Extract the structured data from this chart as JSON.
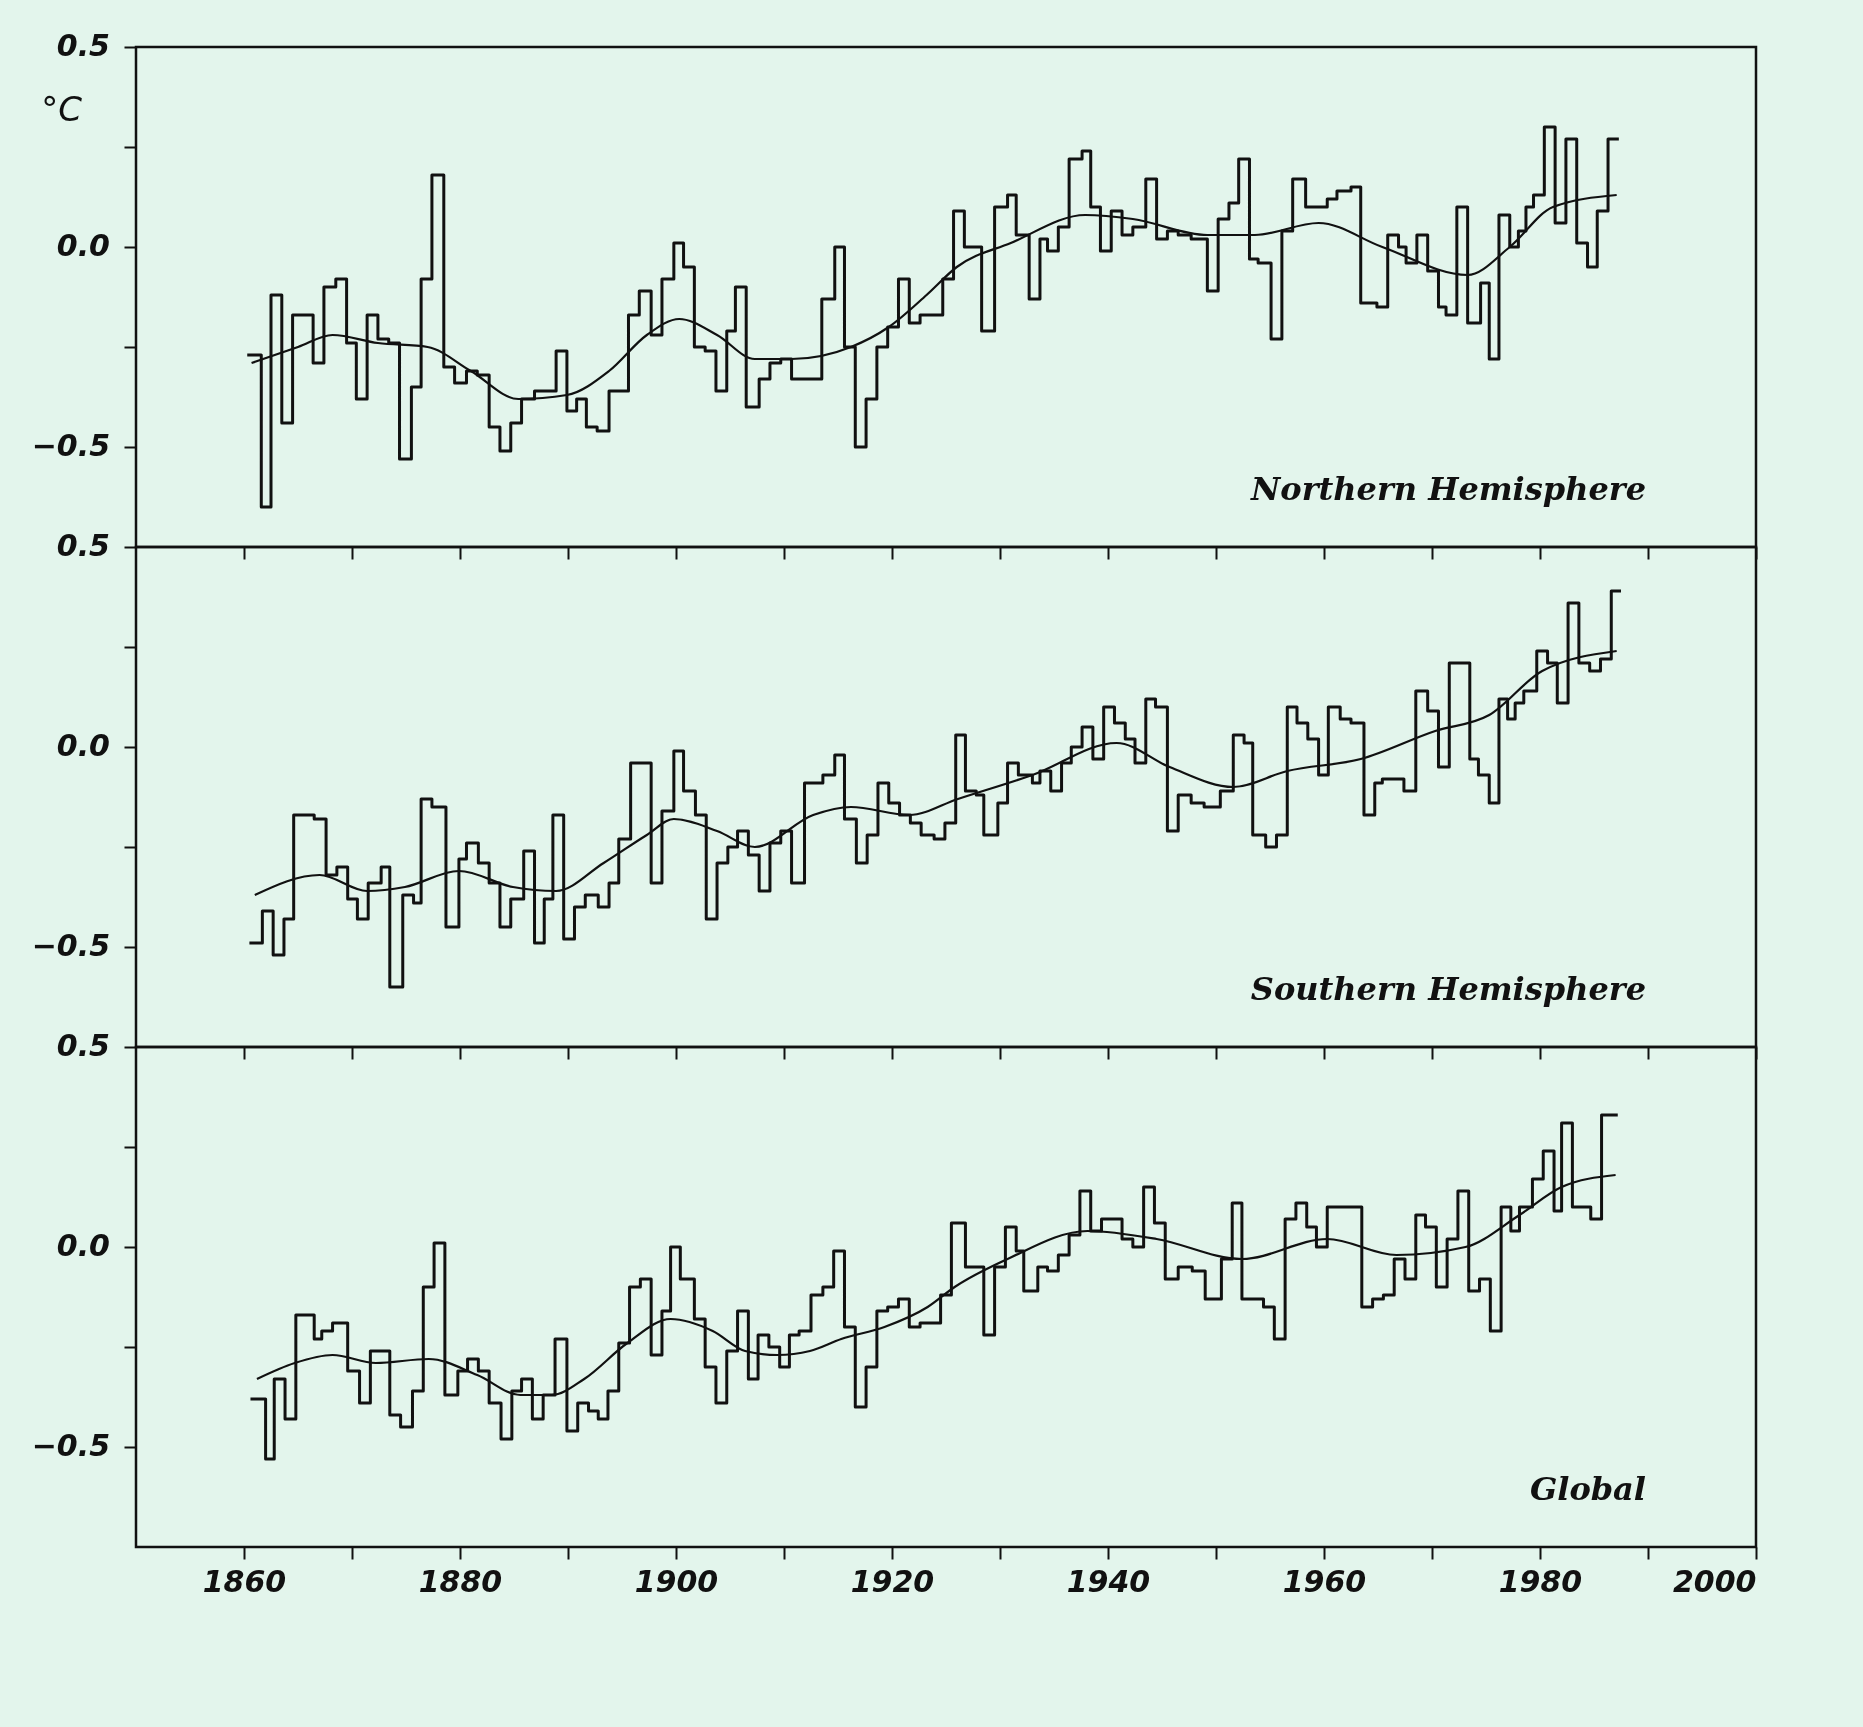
{
  "chart_data": [
    {
      "type": "step",
      "ylabel": "°C",
      "annotations": [
        "Northern Hemisphere"
      ],
      "tick_labels": "y",
      "xlim": [
        1850,
        2000
      ],
      "ylim": [
        -0.75,
        0.5
      ],
      "xticks": [
        1860,
        {
          "value": 1870,
          "label": null
        },
        1880,
        {
          "value": 1890,
          "label": null
        },
        1900,
        {
          "value": 1910,
          "label": null
        },
        1920,
        {
          "value": 1930,
          "label": null
        },
        1940,
        {
          "value": 1950,
          "label": null
        },
        1960,
        {
          "value": 1970,
          "label": null
        },
        1980,
        {
          "value": 1990,
          "label": null
        },
        2000
      ],
      "yticks": [
        {
          "value": -0.5,
          "label": "−0.5"
        },
        {
          "value": -0.25,
          "label": null
        },
        {
          "value": 0,
          "label": "0.0"
        },
        {
          "value": 0.25,
          "label": null
        },
        {
          "value": 0.5,
          "label": "0.5"
        }
      ],
      "series": [
        {
          "type": "step",
          "color": "#111111",
          "x": [
            1860.3,
            1861.6,
            1862.5,
            1863.5,
            1864.5,
            1866.4,
            1867.4,
            1868.5,
            1869.5,
            1870.4,
            1871.4,
            1872.4,
            1873.4,
            1874.4,
            1875.5,
            1876.4,
            1877.4,
            1878.5,
            1879.5,
            1880.6,
            1881.6,
            1882.7,
            1883.7,
            1884.7,
            1885.7,
            1886.9,
            1888.9,
            1889.9,
            1890.8,
            1891.7,
            1892.7,
            1893.8,
            1895.6,
            1896.6,
            1897.7,
            1898.7,
            1899.8,
            1900.7,
            1901.7,
            1902.7,
            1903.7,
            1904.7,
            1905.5,
            1906.5,
            1907.7,
            1908.7,
            1909.7,
            1910.7,
            1913.5,
            1914.7,
            1915.6,
            1916.6,
            1917.6,
            1918.6,
            1919.6,
            1920.6,
            1921.6,
            1922.6,
            1924.7,
            1925.7,
            1926.7,
            1928.3,
            1929.5,
            1930.7,
            1931.5,
            1932.7,
            1933.7,
            1934.4,
            1935.4,
            1936.4,
            1937.6,
            1938.4,
            1939.3,
            1940.3,
            1941.3,
            1942.3,
            1943.5,
            1944.5,
            1945.5,
            1946.5,
            1947.7,
            1949.2,
            1950.2,
            1951.2,
            1952.1,
            1953.1,
            1953.9,
            1955.1,
            1956.1,
            1957.1,
            1958.3,
            1960.3,
            1961.2,
            1962.5,
            1963.4,
            1964.9,
            1965.9,
            1966.9,
            1967.6,
            1968.6,
            1969.6,
            1970.6,
            1971.3,
            1972.3,
            1973.3,
            1974.5,
            1975.3,
            1976.2,
            1977.2,
            1978.0,
            1978.7,
            1979.4,
            1980.4,
            1981.4,
            1982.4,
            1983.4,
            1984.4,
            1985.3,
            1986.3,
            1987.3
          ],
          "values": [
            -0.27,
            -0.65,
            -0.12,
            -0.44,
            -0.17,
            -0.29,
            -0.1,
            -0.08,
            -0.24,
            -0.38,
            -0.17,
            -0.23,
            -0.24,
            -0.53,
            -0.35,
            -0.08,
            0.18,
            -0.3,
            -0.34,
            -0.31,
            -0.32,
            -0.45,
            -0.51,
            -0.44,
            -0.38,
            -0.36,
            -0.26,
            -0.41,
            -0.38,
            -0.45,
            -0.46,
            -0.36,
            -0.17,
            -0.11,
            -0.22,
            -0.08,
            0.01,
            -0.05,
            -0.25,
            -0.26,
            -0.36,
            -0.21,
            -0.1,
            -0.4,
            -0.33,
            -0.29,
            -0.28,
            -0.33,
            -0.13,
            0.0,
            -0.25,
            -0.5,
            -0.38,
            -0.25,
            -0.2,
            -0.08,
            -0.19,
            -0.17,
            -0.08,
            0.09,
            0.0,
            -0.21,
            0.1,
            0.13,
            0.03,
            -0.13,
            0.02,
            -0.01,
            0.05,
            0.22,
            0.24,
            0.1,
            -0.01,
            0.09,
            0.03,
            0.05,
            0.17,
            0.02,
            0.04,
            0.03,
            0.02,
            -0.11,
            0.07,
            0.11,
            0.22,
            -0.03,
            -0.04,
            -0.23,
            0.04,
            0.17,
            0.1,
            0.12,
            0.14,
            0.15,
            -0.14,
            -0.15,
            0.03,
            0.0,
            -0.04,
            0.03,
            -0.06,
            -0.15,
            -0.17,
            0.1,
            -0.19,
            -0.09,
            -0.28,
            0.08,
            0.0,
            0.04,
            0.1,
            0.13,
            0.3,
            0.06,
            0.27,
            0.01,
            -0.05,
            0.09,
            0.27,
            0.27
          ]
        },
        {
          "type": "line",
          "color": "#111111",
          "x": [
            1860.7,
            1865,
            1868.2,
            1872.4,
            1877,
            1881,
            1885.4,
            1889.9,
            1893.8,
            1897.3,
            1900.3,
            1903.8,
            1907.3,
            1910.7,
            1916.2,
            1919.7,
            1923.2,
            1926,
            1931,
            1937.9,
            1942.3,
            1949.2,
            1953.6,
            1959.5,
            1965.4,
            1973.3,
            1977.2,
            1981.2,
            1987.1
          ],
          "values": [
            -0.29,
            -0.25,
            -0.22,
            -0.24,
            -0.25,
            -0.31,
            -0.38,
            -0.37,
            -0.31,
            -0.22,
            -0.18,
            -0.22,
            -0.28,
            -0.28,
            -0.25,
            -0.2,
            -0.12,
            -0.05,
            0.01,
            0.08,
            0.07,
            0.03,
            0.03,
            0.06,
            0.0,
            -0.07,
            0.0,
            0.1,
            0.13
          ]
        }
      ]
    },
    {
      "type": "step",
      "annotations": [
        "Southern Hemisphere"
      ],
      "tick_labels": "y",
      "xlim": [
        1850,
        2000
      ],
      "ylim": [
        -0.75,
        0.5
      ],
      "xticks": [
        1860,
        {
          "value": 1870,
          "label": null
        },
        1880,
        {
          "value": 1890,
          "label": null
        },
        1900,
        {
          "value": 1910,
          "label": null
        },
        1920,
        {
          "value": 1930,
          "label": null
        },
        1940,
        {
          "value": 1950,
          "label": null
        },
        1960,
        {
          "value": 1970,
          "label": null
        },
        1980,
        {
          "value": 1990,
          "label": null
        },
        2000
      ],
      "yticks": [
        {
          "value": -0.5,
          "label": "−0.5"
        },
        {
          "value": -0.25,
          "label": null
        },
        {
          "value": 0,
          "label": "0.0"
        },
        {
          "value": 0.25,
          "label": null
        },
        {
          "value": 0.5,
          "label": "0.5"
        }
      ],
      "series": [
        {
          "type": "step",
          "color": "#111111",
          "x": [
            1860.5,
            1861.7,
            1862.7,
            1863.7,
            1864.6,
            1866.5,
            1867.6,
            1868.6,
            1869.6,
            1870.5,
            1871.5,
            1872.7,
            1873.5,
            1874.7,
            1875.7,
            1876.4,
            1877.4,
            1878.7,
            1879.9,
            1880.6,
            1881.7,
            1882.7,
            1883.7,
            1884.7,
            1885.9,
            1886.9,
            1887.8,
            1888.6,
            1889.6,
            1890.6,
            1891.6,
            1892.8,
            1893.8,
            1894.7,
            1895.8,
            1897.7,
            1898.7,
            1899.8,
            1900.7,
            1901.8,
            1902.8,
            1903.8,
            1904.8,
            1905.7,
            1906.7,
            1907.7,
            1908.7,
            1909.7,
            1910.7,
            1911.9,
            1913.6,
            1914.7,
            1915.6,
            1916.7,
            1917.7,
            1918.7,
            1919.7,
            1920.7,
            1921.7,
            1922.7,
            1923.9,
            1924.9,
            1925.9,
            1926.8,
            1927.8,
            1928.5,
            1929.8,
            1930.7,
            1931.7,
            1933.0,
            1933.7,
            1934.7,
            1935.7,
            1936.6,
            1937.6,
            1938.6,
            1939.6,
            1940.6,
            1941.6,
            1942.5,
            1943.5,
            1944.4,
            1945.5,
            1946.5,
            1947.7,
            1948.9,
            1950.4,
            1951.6,
            1952.6,
            1953.4,
            1954.6,
            1955.6,
            1956.6,
            1957.5,
            1958.5,
            1959.5,
            1960.4,
            1961.5,
            1962.5,
            1963.7,
            1964.7,
            1965.4,
            1967.4,
            1968.5,
            1969.6,
            1970.6,
            1971.6,
            1973.5,
            1974.3,
            1975.3,
            1976.2,
            1977.0,
            1977.7,
            1978.5,
            1979.7,
            1980.7,
            1981.6,
            1982.6,
            1983.6,
            1984.6,
            1985.6,
            1986.6,
            1987.5
          ],
          "values": [
            -0.49,
            -0.41,
            -0.52,
            -0.43,
            -0.17,
            -0.18,
            -0.32,
            -0.3,
            -0.38,
            -0.43,
            -0.34,
            -0.3,
            -0.6,
            -0.37,
            -0.39,
            -0.13,
            -0.15,
            -0.45,
            -0.28,
            -0.24,
            -0.29,
            -0.34,
            -0.45,
            -0.38,
            -0.26,
            -0.49,
            -0.38,
            -0.17,
            -0.48,
            -0.4,
            -0.37,
            -0.4,
            -0.34,
            -0.23,
            -0.04,
            -0.34,
            -0.16,
            -0.01,
            -0.11,
            -0.17,
            -0.43,
            -0.29,
            -0.25,
            -0.21,
            -0.27,
            -0.36,
            -0.24,
            -0.21,
            -0.34,
            -0.09,
            -0.07,
            -0.02,
            -0.18,
            -0.29,
            -0.22,
            -0.09,
            -0.14,
            -0.17,
            -0.19,
            -0.22,
            -0.23,
            -0.19,
            0.03,
            -0.11,
            -0.12,
            -0.22,
            -0.14,
            -0.04,
            -0.07,
            -0.09,
            -0.06,
            -0.11,
            -0.04,
            0.0,
            0.05,
            -0.03,
            0.1,
            0.06,
            0.02,
            -0.04,
            0.12,
            0.1,
            -0.21,
            -0.12,
            -0.14,
            -0.15,
            -0.11,
            0.03,
            0.01,
            -0.22,
            -0.25,
            -0.22,
            0.1,
            0.06,
            0.02,
            -0.07,
            0.1,
            0.07,
            0.06,
            -0.17,
            -0.09,
            -0.08,
            -0.11,
            0.14,
            0.09,
            -0.05,
            0.21,
            -0.03,
            -0.07,
            -0.14,
            0.12,
            0.07,
            0.11,
            0.14,
            0.24,
            0.21,
            0.11,
            0.36,
            0.21,
            0.19,
            0.22,
            0.39,
            0.39
          ]
        },
        {
          "type": "line",
          "color": "#111111",
          "x": [
            1861,
            1867,
            1871.4,
            1874.9,
            1879.9,
            1884.9,
            1888.9,
            1893.3,
            1897.3,
            1899.8,
            1903.8,
            1907.3,
            1912.7,
            1916.2,
            1921.6,
            1926.1,
            1933,
            1940.8,
            1945.7,
            1951.6,
            1956.6,
            1963.4,
            1970.3,
            1975.3,
            1980.2,
            1987.1
          ],
          "values": [
            -0.37,
            -0.32,
            -0.36,
            -0.35,
            -0.31,
            -0.35,
            -0.36,
            -0.29,
            -0.22,
            -0.18,
            -0.21,
            -0.25,
            -0.17,
            -0.15,
            -0.17,
            -0.13,
            -0.07,
            0.01,
            -0.05,
            -0.1,
            -0.06,
            -0.03,
            0.04,
            0.08,
            0.19,
            0.24
          ]
        }
      ]
    },
    {
      "type": "step",
      "annotations": [
        "Global"
      ],
      "xlim": [
        1850,
        2000
      ],
      "ylim": [
        -0.75,
        0.5
      ],
      "xticks": [
        1860,
        {
          "value": 1870,
          "label": null
        },
        1880,
        {
          "value": 1890,
          "label": null
        },
        1900,
        {
          "value": 1910,
          "label": null
        },
        1920,
        {
          "value": 1930,
          "label": null
        },
        1940,
        {
          "value": 1950,
          "label": null
        },
        1960,
        {
          "value": 1970,
          "label": null
        },
        1980,
        {
          "value": 1990,
          "label": null
        },
        2000
      ],
      "yticks": [
        {
          "value": -0.5,
          "label": "−0.5"
        },
        {
          "value": -0.25,
          "label": null
        },
        {
          "value": 0,
          "label": "0.0"
        },
        {
          "value": 0.25,
          "label": null
        },
        {
          "value": 0.5,
          "label": "0.5"
        }
      ],
      "series": [
        {
          "type": "step",
          "color": "#111111",
          "x": [
            1860.6,
            1862.0,
            1862.8,
            1863.8,
            1864.8,
            1866.5,
            1867.2,
            1868.2,
            1869.6,
            1870.7,
            1871.7,
            1873.5,
            1874.5,
            1875.6,
            1876.6,
            1877.6,
            1878.6,
            1879.8,
            1880.7,
            1881.7,
            1882.7,
            1883.8,
            1884.8,
            1885.7,
            1886.7,
            1887.7,
            1888.8,
            1889.9,
            1890.9,
            1891.9,
            1892.8,
            1893.7,
            1894.7,
            1895.7,
            1896.7,
            1897.7,
            1898.7,
            1899.5,
            1900.4,
            1901.7,
            1902.7,
            1903.7,
            1904.7,
            1905.7,
            1906.7,
            1907.6,
            1908.6,
            1909.6,
            1910.5,
            1911.4,
            1912.5,
            1913.6,
            1914.6,
            1915.6,
            1916.6,
            1917.6,
            1918.6,
            1919.6,
            1920.6,
            1921.6,
            1922.6,
            1924.5,
            1925.5,
            1926.8,
            1928.5,
            1929.5,
            1930.5,
            1931.5,
            1932.2,
            1933.5,
            1934.4,
            1935.4,
            1936.4,
            1937.4,
            1938.4,
            1939.4,
            1941.3,
            1942.3,
            1943.3,
            1944.3,
            1945.3,
            1946.5,
            1947.8,
            1949.0,
            1950.5,
            1951.5,
            1952.4,
            1954.4,
            1955.4,
            1956.4,
            1957.4,
            1958.4,
            1959.3,
            1960.3,
            1963.5,
            1964.5,
            1965.5,
            1966.5,
            1967.5,
            1968.5,
            1969.4,
            1970.4,
            1971.4,
            1972.4,
            1973.4,
            1974.4,
            1975.4,
            1976.4,
            1977.3,
            1978.1,
            1979.3,
            1980.3,
            1981.3,
            1982.0,
            1983.0,
            1984.7,
            1985.7,
            1987.2
          ],
          "values": [
            -0.38,
            -0.53,
            -0.33,
            -0.43,
            -0.17,
            -0.23,
            -0.21,
            -0.19,
            -0.31,
            -0.39,
            -0.26,
            -0.42,
            -0.45,
            -0.36,
            -0.1,
            0.01,
            -0.37,
            -0.31,
            -0.28,
            -0.31,
            -0.39,
            -0.48,
            -0.36,
            -0.33,
            -0.43,
            -0.37,
            -0.23,
            -0.46,
            -0.39,
            -0.41,
            -0.43,
            -0.36,
            -0.24,
            -0.1,
            -0.08,
            -0.27,
            -0.16,
            0.0,
            -0.08,
            -0.18,
            -0.3,
            -0.39,
            -0.26,
            -0.16,
            -0.33,
            -0.22,
            -0.25,
            -0.3,
            -0.22,
            -0.21,
            -0.12,
            -0.1,
            -0.01,
            -0.2,
            -0.4,
            -0.3,
            -0.16,
            -0.15,
            -0.13,
            -0.2,
            -0.19,
            -0.12,
            0.06,
            -0.05,
            -0.22,
            -0.05,
            0.05,
            -0.01,
            -0.11,
            -0.05,
            -0.06,
            -0.02,
            0.03,
            0.14,
            0.04,
            0.07,
            0.02,
            0.0,
            0.15,
            0.06,
            -0.08,
            -0.05,
            -0.06,
            -0.13,
            -0.03,
            0.11,
            -0.13,
            -0.15,
            -0.23,
            0.07,
            0.11,
            0.05,
            0.0,
            0.1,
            -0.15,
            -0.13,
            -0.12,
            -0.03,
            -0.08,
            0.08,
            0.05,
            -0.1,
            0.02,
            0.14,
            -0.11,
            -0.08,
            -0.21,
            0.1,
            0.04,
            0.1,
            0.17,
            0.24,
            0.09,
            0.31,
            0.1,
            0.07,
            0.33,
            0.33
          ]
        },
        {
          "type": "line",
          "color": "#111111",
          "x": [
            1861.2,
            1864.7,
            1868.2,
            1872.2,
            1877.1,
            1881.6,
            1885.6,
            1888.5,
            1891.5,
            1895.5,
            1899.5,
            1903.4,
            1906.4,
            1909.4,
            1912.4,
            1915.3,
            1919.3,
            1923.3,
            1925.8,
            1930.7,
            1938.1,
            1944.5,
            1952.4,
            1960.3,
            1966.7,
            1973.1,
            1978.1,
            1982,
            1987
          ],
          "values": [
            -0.33,
            -0.29,
            -0.27,
            -0.29,
            -0.28,
            -0.32,
            -0.37,
            -0.37,
            -0.33,
            -0.24,
            -0.18,
            -0.21,
            -0.26,
            -0.27,
            -0.26,
            -0.23,
            -0.2,
            -0.15,
            -0.1,
            -0.03,
            0.04,
            0.02,
            -0.03,
            0.02,
            -0.02,
            0.0,
            0.08,
            0.15,
            0.18
          ]
        }
      ]
    }
  ]
}
